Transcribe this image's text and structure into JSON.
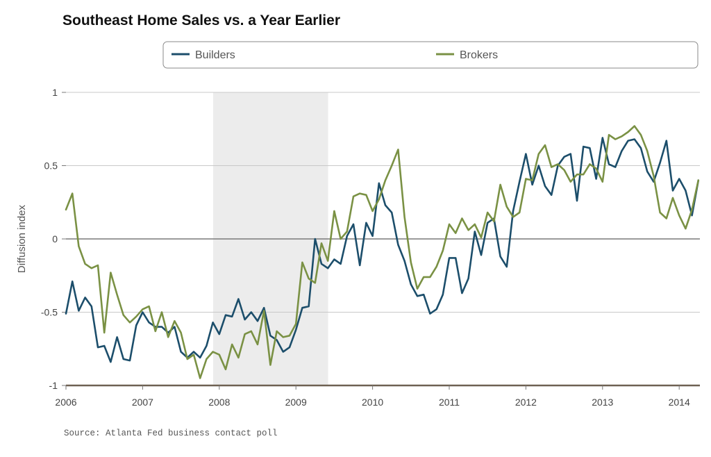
{
  "chart_data": {
    "type": "line",
    "title": "Southeast Home Sales vs. a Year Earlier",
    "ylabel": "Diffusion index",
    "xlabel": "",
    "source": "Source: Atlanta Fed business contact poll",
    "ylim": [
      -1,
      1
    ],
    "yticks": [
      {
        "value": 1,
        "label": "1"
      },
      {
        "value": 0.5,
        "label": "0.5"
      },
      {
        "value": 0,
        "label": "0"
      },
      {
        "value": -0.5,
        "label": "-0.5"
      },
      {
        "value": -1,
        "label": "-1"
      }
    ],
    "xlim": [
      2006.0,
      2014.27
    ],
    "xticks": [
      {
        "value": 2006,
        "label": "2006"
      },
      {
        "value": 2007,
        "label": "2007"
      },
      {
        "value": 2008,
        "label": "2008"
      },
      {
        "value": 2009,
        "label": "2009"
      },
      {
        "value": 2010,
        "label": "2010"
      },
      {
        "value": 2011,
        "label": "2011"
      },
      {
        "value": 2012,
        "label": "2012"
      },
      {
        "value": 2013,
        "label": "2013"
      },
      {
        "value": 2014,
        "label": "2014"
      }
    ],
    "grid": true,
    "legend_position": "top",
    "shaded_region": {
      "x_start": 2007.92,
      "x_end": 2009.42,
      "color": "#ececec"
    },
    "series": [
      {
        "name": "Builders",
        "color": "#1c4e6b",
        "values": [
          -0.51,
          -0.29,
          -0.49,
          -0.4,
          -0.46,
          -0.74,
          -0.73,
          -0.84,
          -0.67,
          -0.82,
          -0.83,
          -0.59,
          -0.5,
          -0.57,
          -0.6,
          -0.6,
          -0.64,
          -0.6,
          -0.77,
          -0.81,
          -0.77,
          -0.81,
          -0.73,
          -0.57,
          -0.65,
          -0.52,
          -0.53,
          -0.41,
          -0.55,
          -0.5,
          -0.56,
          -0.47,
          -0.66,
          -0.69,
          -0.77,
          -0.74,
          -0.62,
          -0.47,
          -0.46,
          0.0,
          -0.17,
          -0.2,
          -0.14,
          -0.17,
          0.02,
          0.1,
          -0.18,
          0.11,
          0.02,
          0.38,
          0.23,
          0.18,
          -0.04,
          -0.15,
          -0.31,
          -0.39,
          -0.38,
          -0.51,
          -0.48,
          -0.38,
          -0.13,
          -0.13,
          -0.37,
          -0.27,
          0.05,
          -0.11,
          0.11,
          0.14,
          -0.12,
          -0.19,
          0.19,
          0.39,
          0.58,
          0.37,
          0.5,
          0.36,
          0.3,
          0.5,
          0.56,
          0.58,
          0.26,
          0.63,
          0.62,
          0.41,
          0.69,
          0.51,
          0.49,
          0.6,
          0.67,
          0.68,
          0.62,
          0.46,
          0.39,
          0.52,
          0.67,
          0.33,
          0.41,
          0.33,
          0.16,
          0.4
        ]
      },
      {
        "name": "Brokers",
        "color": "#7a9144",
        "values": [
          0.2,
          0.31,
          -0.05,
          -0.17,
          -0.2,
          -0.18,
          -0.64,
          -0.23,
          -0.38,
          -0.52,
          -0.57,
          -0.53,
          -0.48,
          -0.46,
          -0.63,
          -0.5,
          -0.67,
          -0.56,
          -0.64,
          -0.82,
          -0.79,
          -0.95,
          -0.82,
          -0.77,
          -0.79,
          -0.89,
          -0.72,
          -0.81,
          -0.65,
          -0.63,
          -0.72,
          -0.49,
          -0.86,
          -0.63,
          -0.67,
          -0.66,
          -0.58,
          -0.16,
          -0.27,
          -0.3,
          -0.03,
          -0.15,
          0.19,
          0.0,
          0.05,
          0.29,
          0.31,
          0.3,
          0.19,
          0.27,
          0.4,
          0.5,
          0.61,
          0.15,
          -0.16,
          -0.34,
          -0.26,
          -0.26,
          -0.19,
          -0.08,
          0.1,
          0.04,
          0.14,
          0.06,
          0.1,
          0.01,
          0.18,
          0.12,
          0.37,
          0.22,
          0.15,
          0.18,
          0.41,
          0.4,
          0.58,
          0.64,
          0.49,
          0.51,
          0.47,
          0.39,
          0.44,
          0.44,
          0.51,
          0.48,
          0.39,
          0.71,
          0.68,
          0.7,
          0.73,
          0.77,
          0.71,
          0.6,
          0.43,
          0.18,
          0.14,
          0.28,
          0.16,
          0.07,
          0.2,
          0.4
        ]
      }
    ]
  }
}
